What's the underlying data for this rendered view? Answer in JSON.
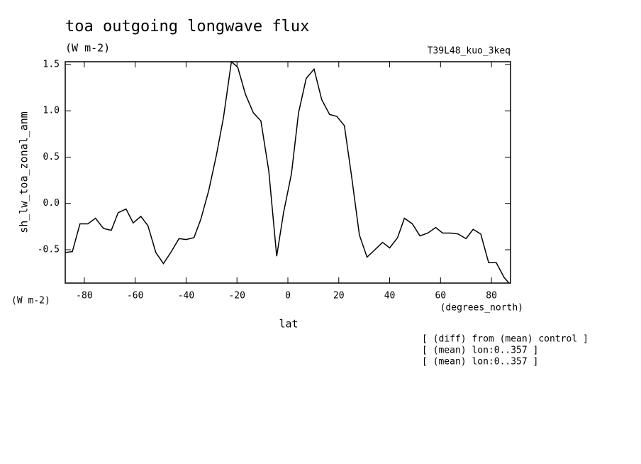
{
  "chart_data": {
    "type": "line",
    "title": "toa outgoing longwave flux",
    "subtitle": "(W m-2)",
    "run_label": "T39L48_kuo_3keq",
    "y_label": "sh_lw_toa_zonal_anm",
    "y_units": "(W m-2)",
    "x_label": "lat",
    "x_units": "(degrees_north)",
    "notes": [
      "[ (diff) from (mean) control ]",
      "[ (mean) lon:0..357 ]",
      "[ (mean) lon:0..357 ]"
    ],
    "x": [
      -87.5,
      -84.7,
      -81.7,
      -78.6,
      -75.6,
      -72.5,
      -69.4,
      -66.7,
      -63.6,
      -60.8,
      -57.8,
      -55,
      -51.9,
      -48.9,
      -45.8,
      -42.8,
      -40,
      -36.9,
      -34.2,
      -31.1,
      -28.1,
      -25.3,
      -22.2,
      -19.7,
      -16.7,
      -13.6,
      -10.6,
      -7.5,
      -4.4,
      -1.7,
      1.4,
      4.2,
      7.2,
      10.3,
      13.3,
      16.4,
      19.2,
      22.2,
      25,
      28.1,
      31.1,
      34.2,
      37.2,
      40,
      43.1,
      45.8,
      48.9,
      51.9,
      55,
      58.1,
      60.8,
      63.9,
      66.9,
      70,
      72.8,
      75.8,
      78.9,
      81.9,
      85,
      86.9
    ],
    "series": [
      {
        "name": "sh_lw_toa_zonal_anm",
        "color": "#000000",
        "values": [
          -0.53,
          -0.52,
          -0.22,
          -0.22,
          -0.16,
          -0.27,
          -0.29,
          -0.1,
          -0.06,
          -0.21,
          -0.14,
          -0.24,
          -0.53,
          -0.65,
          -0.52,
          -0.38,
          -0.39,
          -0.37,
          -0.17,
          0.14,
          0.52,
          0.93,
          1.53,
          1.47,
          1.18,
          0.98,
          0.89,
          0.35,
          -0.57,
          -0.1,
          0.32,
          0.98,
          1.35,
          1.45,
          1.12,
          0.96,
          0.94,
          0.84,
          0.3,
          -0.34,
          -0.58,
          -0.5,
          -0.42,
          -0.48,
          -0.37,
          -0.16,
          -0.22,
          -0.35,
          -0.32,
          -0.26,
          -0.32,
          -0.32,
          -0.33,
          -0.38,
          -0.28,
          -0.33,
          -0.64,
          -0.64,
          -0.8,
          -0.86
        ]
      }
    ],
    "xlim": [
      -87.5,
      87.5
    ],
    "xticks": [
      -80,
      -60,
      -40,
      -20,
      0,
      20,
      40,
      60,
      80
    ],
    "ylim": [
      -0.86,
      1.53
    ],
    "yticks": [
      -0.5,
      {
        "value": 0,
        "label": "0.0"
      },
      0.5,
      {
        "value": 1,
        "label": "1.0"
      },
      1.5
    ]
  }
}
